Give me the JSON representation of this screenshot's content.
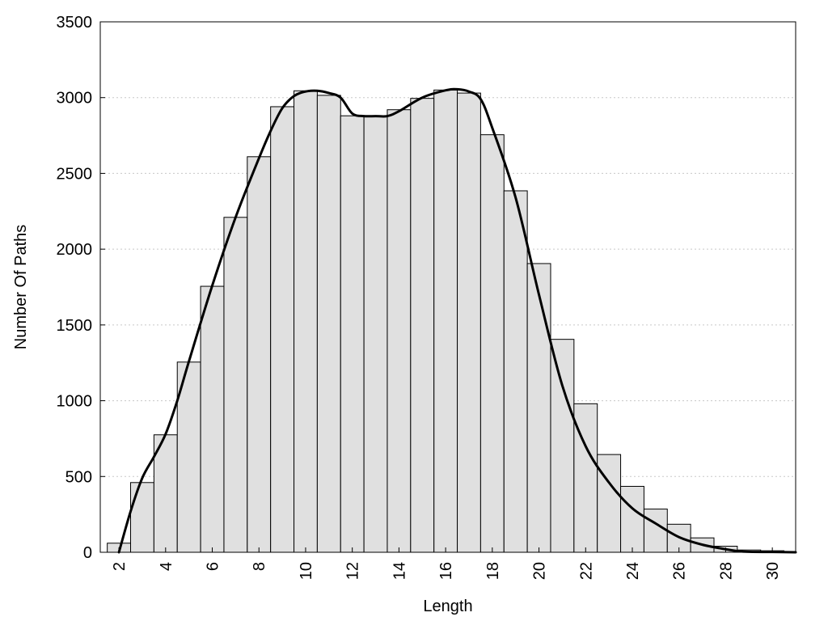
{
  "chart_data": {
    "type": "bar",
    "xlabel": "Length",
    "ylabel": "Number Of Paths",
    "ylim": [
      0,
      3500
    ],
    "xlim": [
      1.2,
      31.0
    ],
    "yticks": [
      "0",
      "500",
      "1000",
      "1500",
      "2000",
      "2500",
      "3000",
      "3500"
    ],
    "xticks": [
      "2",
      "4",
      "6",
      "8",
      "10",
      "12",
      "14",
      "16",
      "18",
      "20",
      "22",
      "24",
      "26",
      "28",
      "30"
    ],
    "grid": true,
    "bars": {
      "x": [
        2,
        3,
        4,
        5,
        6,
        7,
        8,
        9,
        10,
        11,
        12,
        13,
        14,
        15,
        16,
        17,
        18,
        19,
        20,
        21,
        22,
        23,
        24,
        25,
        26,
        27,
        28,
        29,
        30
      ],
      "values": [
        60,
        460,
        775,
        1255,
        1755,
        2210,
        2610,
        2940,
        3045,
        3015,
        2880,
        2875,
        2920,
        2995,
        3050,
        3030,
        2755,
        2385,
        1905,
        1405,
        980,
        645,
        435,
        285,
        185,
        95,
        40,
        15,
        10
      ]
    },
    "density_curve": {
      "x": [
        2.0,
        2.5,
        3.0,
        3.5,
        4.0,
        4.5,
        5.0,
        6.0,
        7.0,
        8.0,
        8.5,
        9.0,
        9.5,
        10.0,
        10.5,
        11.0,
        11.5,
        12.0,
        12.5,
        13.0,
        13.5,
        14.0,
        15.0,
        16.0,
        16.5,
        17.0,
        17.5,
        18.0,
        19.0,
        20.0,
        21.0,
        22.0,
        23.0,
        24.0,
        25.0,
        26.0,
        27.0,
        28.0,
        28.5,
        29.0,
        30.0,
        31.0
      ],
      "y": [
        0,
        270,
        490,
        630,
        780,
        1000,
        1260,
        1760,
        2210,
        2600,
        2780,
        2930,
        3010,
        3040,
        3045,
        3030,
        3000,
        2895,
        2878,
        2878,
        2878,
        2910,
        3000,
        3048,
        3055,
        3040,
        2990,
        2800,
        2340,
        1700,
        1100,
        700,
        460,
        290,
        190,
        100,
        50,
        20,
        8,
        3,
        2,
        0
      ]
    }
  }
}
